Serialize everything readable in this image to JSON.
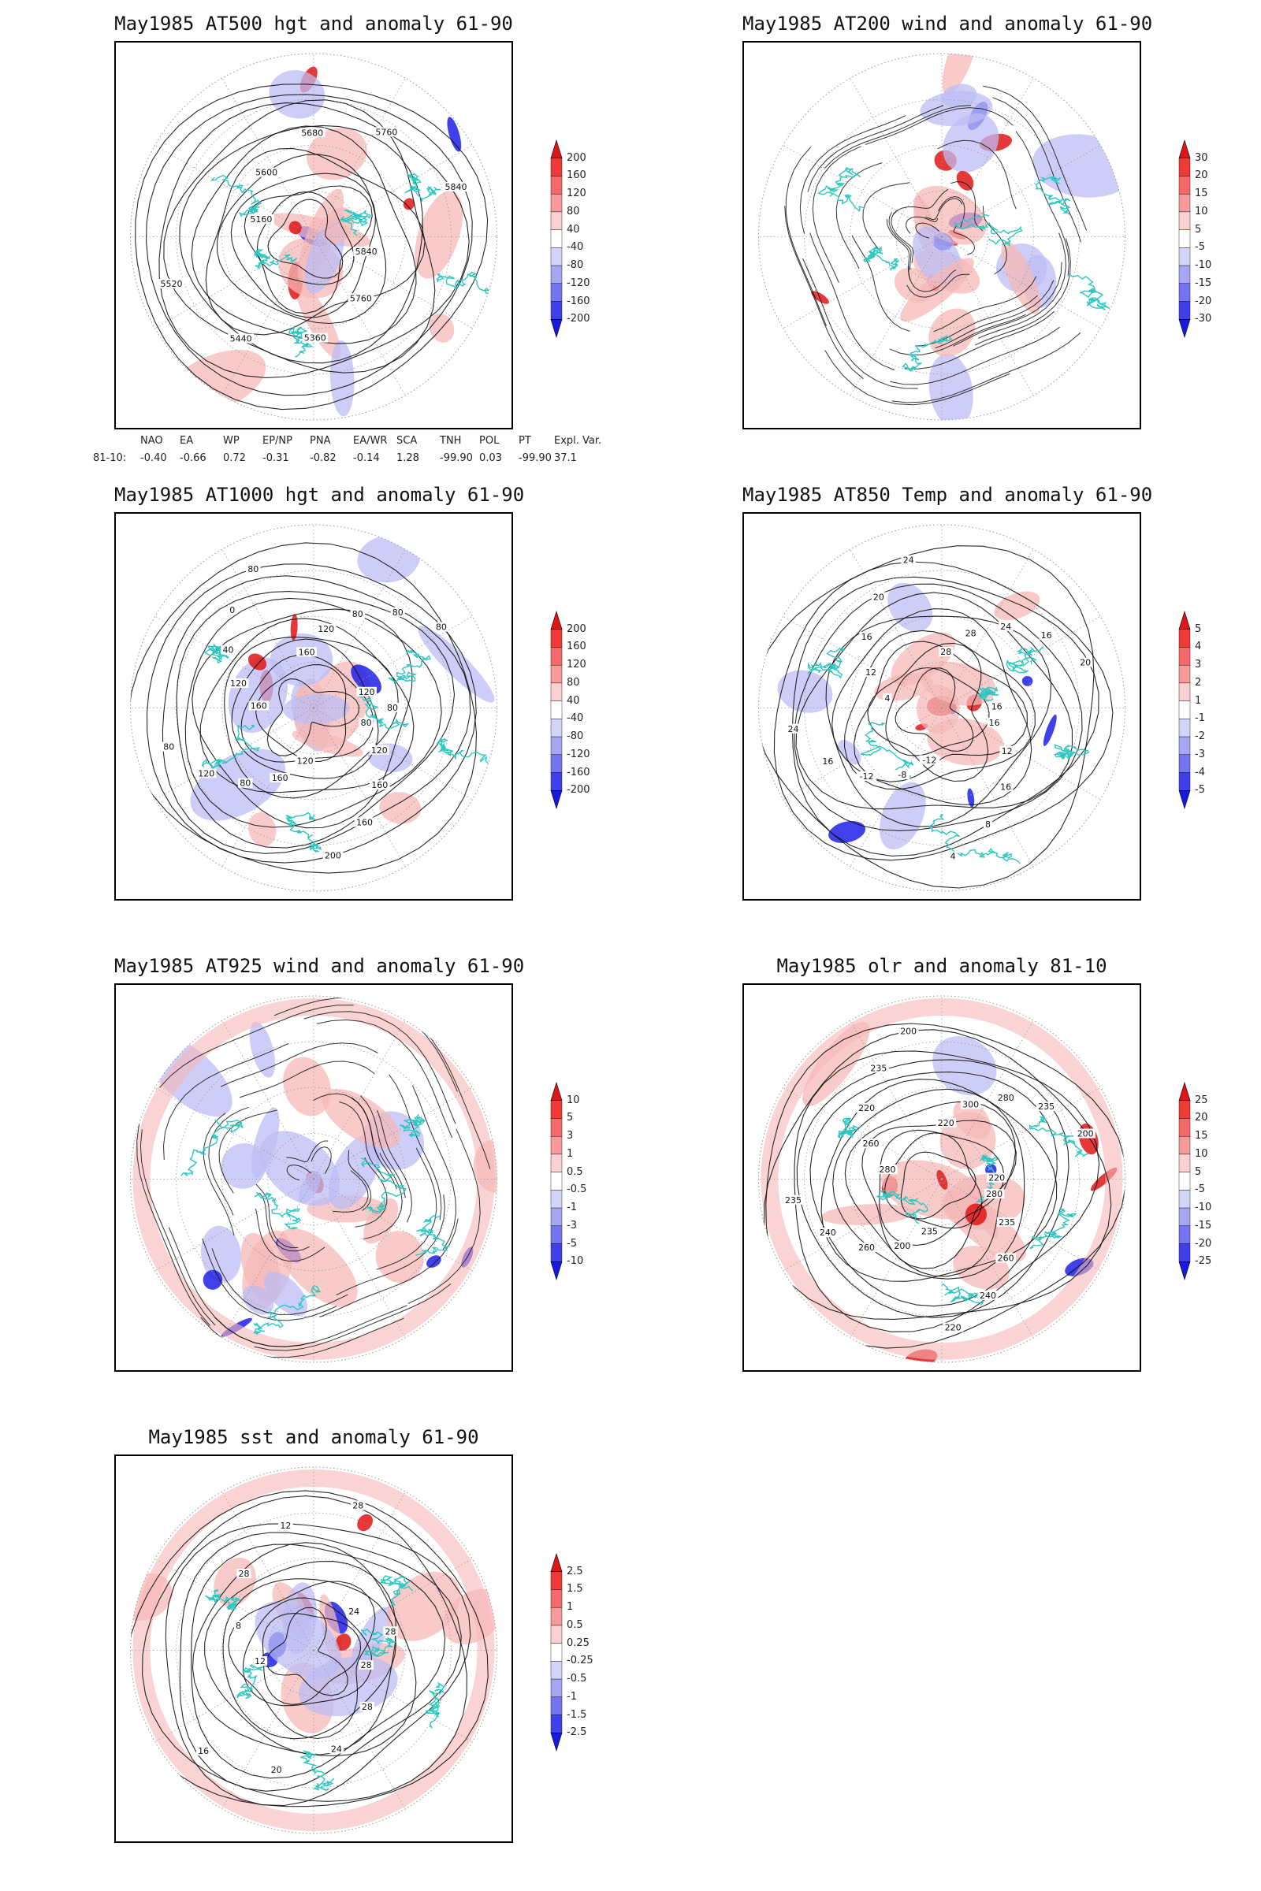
{
  "figure": {
    "panels": [
      {
        "id": "p1",
        "title": "May1985 AT500 hgt and anomaly 61-90",
        "kind": "contour",
        "colorbar": [
          "200",
          "160",
          "120",
          "80",
          "40",
          "-40",
          "-80",
          "-120",
          "-160",
          "-200"
        ],
        "contour_labels": [
          "5840",
          "5760",
          "5360",
          "5440",
          "5520",
          "5160",
          "5600",
          "5680",
          "5760",
          "5840"
        ]
      },
      {
        "id": "p2",
        "title": "May1985 AT200 wind and anomaly 61-90",
        "kind": "wind",
        "colorbar": [
          "30",
          "20",
          "15",
          "10",
          "5",
          "-5",
          "-10",
          "-15",
          "-20",
          "-30"
        ],
        "contour_labels": []
      },
      {
        "id": "p3",
        "title": "May1985 AT1000 hgt and anomaly 61-90",
        "kind": "contour",
        "colorbar": [
          "200",
          "160",
          "120",
          "80",
          "40",
          "-40",
          "-80",
          "-120",
          "-160",
          "-200"
        ],
        "contour_labels": [
          "80",
          "120",
          "160",
          "160",
          "200",
          "120",
          "160",
          "80",
          "120",
          "80",
          "160",
          "120",
          "40",
          "0",
          "80",
          "160",
          "120",
          "80",
          "80",
          "80",
          "120",
          "80"
        ]
      },
      {
        "id": "p4",
        "title": "May1985 AT850 Temp and anomaly 61-90",
        "kind": "contour",
        "colorbar": [
          "5",
          "4",
          "3",
          "2",
          "1",
          "-1",
          "-2",
          "-3",
          "-4",
          "-5"
        ],
        "contour_labels": [
          "16",
          "12",
          "16",
          "8",
          "4",
          "-12",
          "-8",
          "-12",
          "16",
          "24",
          "4",
          "12",
          "16",
          "20",
          "24",
          "28",
          "28",
          "24",
          "16",
          "20",
          "16"
        ]
      },
      {
        "id": "p5",
        "title": "May1985 AT925 wind and anomaly 61-90",
        "kind": "wind",
        "colorbar": [
          "10",
          "5",
          "3",
          "1",
          "0.5",
          "-0.5",
          "-1",
          "-3",
          "-5",
          "-10"
        ],
        "contour_labels": []
      },
      {
        "id": "p6",
        "title": "May1985 olr and anomaly 81-10",
        "kind": "contour",
        "colorbar": [
          "25",
          "20",
          "15",
          "10",
          "5",
          "-5",
          "-10",
          "-15",
          "-20",
          "-25"
        ],
        "contour_labels": [
          "280",
          "235",
          "260",
          "240",
          "220",
          "235",
          "200",
          "260",
          "240",
          "235",
          "280",
          "260",
          "220",
          "235",
          "200",
          "220",
          "300",
          "280",
          "235",
          "200",
          "220"
        ]
      },
      {
        "id": "p7",
        "title": "May1985 sst and anomaly 61-90",
        "kind": "contour",
        "colorbar": [
          "2.5",
          "1.5",
          "1",
          "0.5",
          "0.25",
          "-0.25",
          "-0.5",
          "-1",
          "-1.5",
          "-2.5"
        ],
        "contour_labels": [
          "28",
          "28",
          "24",
          "20",
          "16",
          "12",
          "8",
          "28",
          "12",
          "28",
          "24",
          "28"
        ]
      }
    ],
    "index_table": {
      "headers": [
        "NAO",
        "EA",
        "WP",
        "EP/NP",
        "PNA",
        "EA/WR",
        "SCA",
        "TNH",
        "POL",
        "PT",
        "Expl. Var."
      ],
      "row_label": "81-10:",
      "values": [
        "-0.40",
        "-0.66",
        "0.72",
        "-0.31",
        "-0.82",
        "-0.14",
        "1.28",
        "-99.90",
        "0.03",
        "-99.90",
        "37.1"
      ]
    },
    "colors": {
      "coast": "#2ec8c0",
      "contour": "#111111",
      "grid": "#9a9a9a",
      "pos_strong": "#e01515",
      "pos_light": "#f6b8b8",
      "neg_light": "#bcbcf4",
      "neg_strong": "#2020e8"
    }
  }
}
